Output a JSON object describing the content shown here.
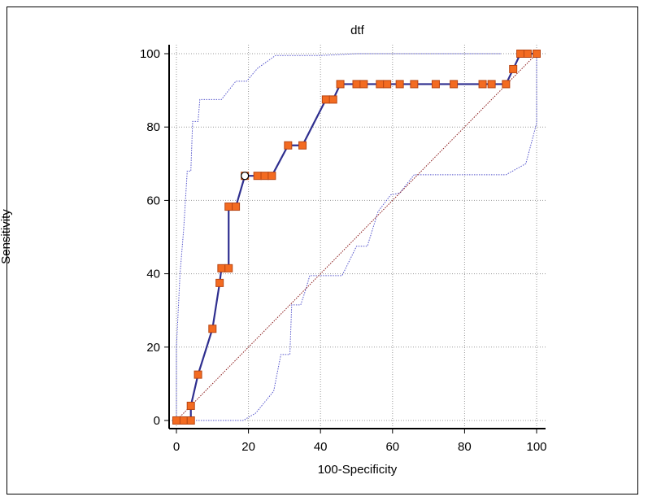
{
  "chart_data": {
    "type": "line",
    "title": "dtf",
    "xlabel": "100-Specificity",
    "ylabel": "Sensitivity",
    "xlim": [
      0,
      100
    ],
    "ylim": [
      0,
      100
    ],
    "xticks": [
      0,
      20,
      40,
      60,
      80,
      100
    ],
    "yticks": [
      0,
      20,
      40,
      60,
      80,
      100
    ],
    "grid": true,
    "colors": {
      "roc_line": "#2f2f8f",
      "marker_fill": "#f36b21",
      "marker_edge": "#b84512",
      "confidence_band": "#5555cc",
      "diagonal": "#8a1a1a",
      "grid": "#9a9a9a"
    },
    "series": [
      {
        "kind": "roc",
        "points": [
          [
            0,
            0
          ],
          [
            2,
            0
          ],
          [
            4,
            0
          ],
          [
            4,
            4
          ],
          [
            6,
            12.5
          ],
          [
            10,
            25
          ],
          [
            12,
            37.5
          ],
          [
            12.5,
            41.5
          ],
          [
            14.5,
            41.5
          ],
          [
            14.5,
            58.3
          ],
          [
            16.5,
            58.3
          ],
          [
            19,
            66.7
          ],
          [
            22.5,
            66.7
          ],
          [
            24.5,
            66.7
          ],
          [
            26.5,
            66.7
          ],
          [
            31,
            75
          ],
          [
            35,
            75
          ],
          [
            41.5,
            87.5
          ],
          [
            43.5,
            87.5
          ],
          [
            45.5,
            91.7
          ],
          [
            50,
            91.7
          ],
          [
            52,
            91.7
          ],
          [
            56.5,
            91.7
          ],
          [
            58.5,
            91.7
          ],
          [
            62,
            91.7
          ],
          [
            66,
            91.7
          ],
          [
            72,
            91.7
          ],
          [
            77,
            91.7
          ],
          [
            85,
            91.7
          ],
          [
            87.5,
            91.7
          ],
          [
            91.5,
            91.7
          ],
          [
            93.5,
            95.8
          ],
          [
            95.5,
            100
          ],
          [
            97.5,
            100
          ],
          [
            100,
            100
          ]
        ],
        "criterion_point": [
          19,
          66.7
        ]
      },
      {
        "kind": "upper_confidence_bound",
        "points": [
          [
            0,
            0
          ],
          [
            0,
            20
          ],
          [
            1,
            40
          ],
          [
            2,
            52
          ],
          [
            3,
            68
          ],
          [
            4,
            68
          ],
          [
            4.5,
            81.5
          ],
          [
            6,
            81.5
          ],
          [
            6.5,
            87.5
          ],
          [
            12.5,
            87.5
          ],
          [
            14.5,
            90
          ],
          [
            16.5,
            92.5
          ],
          [
            19.5,
            92.5
          ],
          [
            22.5,
            96
          ],
          [
            27.5,
            99.5
          ],
          [
            40,
            99.5
          ],
          [
            50,
            100
          ],
          [
            90,
            100
          ]
        ]
      },
      {
        "kind": "lower_confidence_bound",
        "points": [
          [
            0,
            0
          ],
          [
            18.5,
            0
          ],
          [
            22,
            2
          ],
          [
            27,
            8
          ],
          [
            29,
            18
          ],
          [
            31.5,
            18
          ],
          [
            32,
            31.5
          ],
          [
            34.5,
            31.5
          ],
          [
            36,
            36
          ],
          [
            37,
            39.5
          ],
          [
            46,
            39.5
          ],
          [
            50,
            47.5
          ],
          [
            53,
            47.5
          ],
          [
            56,
            57
          ],
          [
            59.5,
            61.5
          ],
          [
            62,
            62
          ],
          [
            66,
            67
          ],
          [
            73,
            67
          ],
          [
            86,
            67
          ],
          [
            91.5,
            67
          ],
          [
            97,
            70
          ],
          [
            100,
            81
          ],
          [
            100,
            100
          ]
        ]
      },
      {
        "kind": "reference_diagonal",
        "points": [
          [
            0,
            0
          ],
          [
            100,
            100
          ]
        ]
      }
    ]
  }
}
